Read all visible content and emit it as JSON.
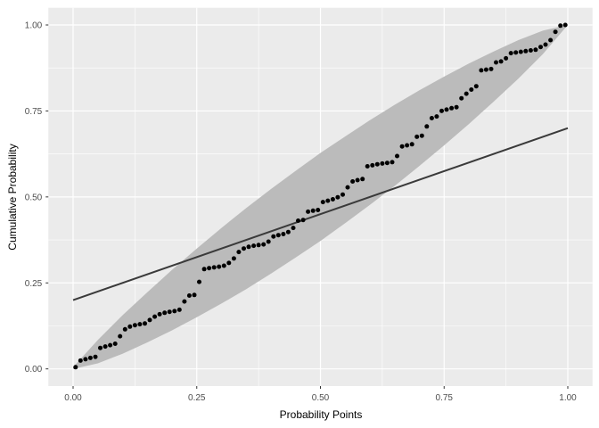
{
  "chart_data": {
    "type": "scatter",
    "title": "",
    "xlabel": "Probability Points",
    "ylabel": "Cumulative Probability",
    "xlim": [
      0,
      1
    ],
    "ylim": [
      0,
      1
    ],
    "grid": "major+minor",
    "legend": "none",
    "x_ticks": {
      "values": [
        0,
        0.25,
        0.5,
        0.75,
        1
      ],
      "labels": [
        "0.00",
        "0.25",
        "0.50",
        "0.75",
        "1.00"
      ]
    },
    "y_ticks": {
      "values": [
        0,
        0.25,
        0.5,
        0.75,
        1
      ],
      "labels": [
        "0.00",
        "0.25",
        "0.50",
        "0.75",
        "1.00"
      ]
    },
    "minor_ticks": [
      0.125,
      0.375,
      0.625,
      0.875
    ],
    "colors": {
      "panel_background": "#EBEBEB",
      "grid_major": "#FFFFFF",
      "grid_minor": "#FFFFFF",
      "band": "#BBBBBB",
      "points": "#000000",
      "reference_line": "#3A3A3A",
      "tick_text": "#4D4D4D",
      "tick_mark": "#333333"
    },
    "series": [
      {
        "name": "observed-cumulative-probability",
        "type": "scatter",
        "x": [
          0.005,
          0.015,
          0.025,
          0.035,
          0.045,
          0.055,
          0.065,
          0.075,
          0.085,
          0.095,
          0.105,
          0.115,
          0.125,
          0.135,
          0.145,
          0.155,
          0.165,
          0.175,
          0.185,
          0.195,
          0.205,
          0.215,
          0.225,
          0.235,
          0.245,
          0.255,
          0.265,
          0.275,
          0.285,
          0.295,
          0.305,
          0.315,
          0.325,
          0.335,
          0.345,
          0.355,
          0.365,
          0.375,
          0.385,
          0.395,
          0.405,
          0.415,
          0.425,
          0.435,
          0.445,
          0.455,
          0.465,
          0.475,
          0.485,
          0.495,
          0.505,
          0.515,
          0.525,
          0.535,
          0.545,
          0.555,
          0.565,
          0.575,
          0.585,
          0.595,
          0.605,
          0.615,
          0.625,
          0.635,
          0.645,
          0.655,
          0.665,
          0.675,
          0.685,
          0.695,
          0.705,
          0.715,
          0.725,
          0.735,
          0.745,
          0.755,
          0.765,
          0.775,
          0.785,
          0.795,
          0.805,
          0.815,
          0.825,
          0.835,
          0.845,
          0.855,
          0.865,
          0.875,
          0.885,
          0.895,
          0.905,
          0.915,
          0.925,
          0.935,
          0.945,
          0.955,
          0.965,
          0.975,
          0.985,
          0.995
        ],
        "y": [
          0.005,
          0.024,
          0.028,
          0.032,
          0.035,
          0.061,
          0.065,
          0.069,
          0.073,
          0.095,
          0.115,
          0.123,
          0.127,
          0.13,
          0.132,
          0.142,
          0.152,
          0.159,
          0.163,
          0.166,
          0.168,
          0.172,
          0.196,
          0.213,
          0.215,
          0.253,
          0.29,
          0.293,
          0.295,
          0.297,
          0.3,
          0.308,
          0.321,
          0.34,
          0.35,
          0.355,
          0.358,
          0.36,
          0.362,
          0.37,
          0.385,
          0.389,
          0.392,
          0.398,
          0.41,
          0.431,
          0.433,
          0.457,
          0.46,
          0.462,
          0.485,
          0.489,
          0.493,
          0.499,
          0.507,
          0.528,
          0.545,
          0.549,
          0.552,
          0.589,
          0.592,
          0.595,
          0.597,
          0.599,
          0.601,
          0.619,
          0.647,
          0.65,
          0.653,
          0.675,
          0.678,
          0.705,
          0.729,
          0.734,
          0.75,
          0.754,
          0.758,
          0.761,
          0.787,
          0.8,
          0.812,
          0.822,
          0.868,
          0.87,
          0.872,
          0.891,
          0.894,
          0.903,
          0.918,
          0.92,
          0.922,
          0.924,
          0.926,
          0.928,
          0.936,
          0.943,
          0.956,
          0.98,
          0.998,
          1.0
        ]
      },
      {
        "name": "reference-line",
        "type": "line",
        "x": [
          0,
          1
        ],
        "y": [
          0.2,
          0.7
        ]
      },
      {
        "name": "confidence-band",
        "type": "area",
        "x": [
          0.0,
          0.05,
          0.1,
          0.15,
          0.2,
          0.25,
          0.3,
          0.35,
          0.4,
          0.45,
          0.5,
          0.55,
          0.6,
          0.65,
          0.7,
          0.75,
          0.8,
          0.85,
          0.9,
          0.95,
          1.0
        ],
        "lower": [
          0.0,
          0.016,
          0.044,
          0.077,
          0.112,
          0.15,
          0.19,
          0.232,
          0.277,
          0.324,
          0.372,
          0.424,
          0.477,
          0.532,
          0.59,
          0.65,
          0.712,
          0.777,
          0.844,
          0.916,
          1.0
        ],
        "upper": [
          0.005,
          0.084,
          0.156,
          0.223,
          0.288,
          0.35,
          0.41,
          0.468,
          0.523,
          0.576,
          0.628,
          0.676,
          0.723,
          0.768,
          0.81,
          0.85,
          0.888,
          0.923,
          0.956,
          0.984,
          1.0
        ]
      }
    ]
  }
}
